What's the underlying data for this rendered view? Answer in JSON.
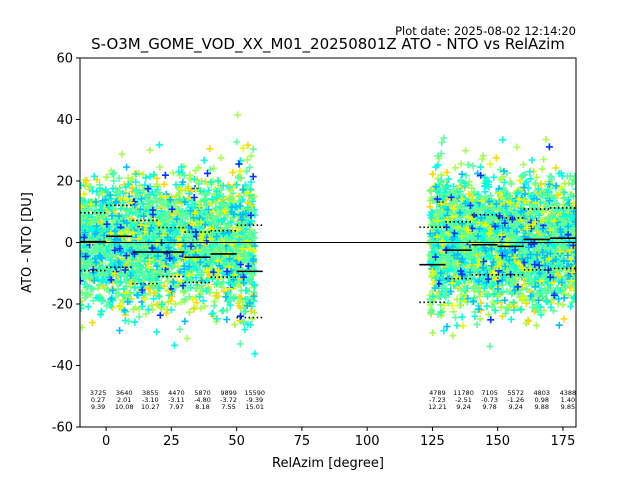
{
  "plot_date": "Plot date: 2025-08-02 12:14:20",
  "chart_data": {
    "type": "scatter",
    "title": "S-O3M_GOME_VOD_XX_M01_20250801Z ATO - NTO vs RelAzim",
    "xlabel": "RelAzim [degree]",
    "ylabel": "ATO - NTO [DU]",
    "xlim": [
      -10,
      180
    ],
    "ylim": [
      -60,
      60
    ],
    "xticks": [
      0,
      25,
      50,
      75,
      100,
      125,
      150,
      175
    ],
    "yticks": [
      -60,
      -40,
      -20,
      0,
      20,
      40,
      60
    ],
    "grid": false,
    "marker": "+",
    "colors": [
      "#a6ff4d",
      "#ffd700",
      "#00ffe0",
      "#5cffa0",
      "#00bfff",
      "#0033ff",
      "#e6ff00"
    ],
    "clusters": [
      {
        "x_range": [
          -10,
          57
        ],
        "y_center": 0,
        "spread": 18
      },
      {
        "x_range": [
          124,
          180
        ],
        "y_center": 0,
        "spread": 18
      }
    ],
    "zero_line": 0,
    "bins": [
      {
        "x0": -10,
        "x1": 0,
        "mean": 0.27,
        "std": 9.39,
        "count": "3725",
        "mean_label": "0.27",
        "std_label": "9.39"
      },
      {
        "x0": 0,
        "x1": 10,
        "mean": 2.01,
        "std": 10.08,
        "count": "3640",
        "mean_label": "2.01",
        "std_label": "10.08"
      },
      {
        "x0": 10,
        "x1": 20,
        "mean": -3.1,
        "std": 10.27,
        "count": "3855",
        "mean_label": "-3.10",
        "std_label": "10.27"
      },
      {
        "x0": 20,
        "x1": 30,
        "mean": -3.11,
        "std": 7.97,
        "count": "4470",
        "mean_label": "-3.11",
        "std_label": "7.97"
      },
      {
        "x0": 30,
        "x1": 40,
        "mean": -4.8,
        "std": 8.18,
        "count": "5870",
        "mean_label": "-4.80",
        "std_label": "8.18"
      },
      {
        "x0": 40,
        "x1": 50,
        "mean": -3.72,
        "std": 7.55,
        "count": "9899",
        "mean_label": "-3.72",
        "std_label": "7.55"
      },
      {
        "x0": 50,
        "x1": 60,
        "mean": -9.39,
        "std": 15.01,
        "count": "15590",
        "mean_label": "-9.39",
        "std_label": "15.01"
      },
      {
        "x0": 120,
        "x1": 130,
        "mean": -7.23,
        "std": 12.21,
        "count": "4789",
        "mean_label": "-7.23",
        "std_label": "12.21"
      },
      {
        "x0": 130,
        "x1": 140,
        "mean": -2.51,
        "std": 9.24,
        "count": "11780",
        "mean_label": "-2.51",
        "std_label": "9.24"
      },
      {
        "x0": 140,
        "x1": 150,
        "mean": -0.73,
        "std": 9.78,
        "count": "7105",
        "mean_label": "-0.73",
        "std_label": "9.78"
      },
      {
        "x0": 150,
        "x1": 160,
        "mean": -1.26,
        "std": 9.24,
        "count": "5572",
        "mean_label": "-1.26",
        "std_label": "9.24"
      },
      {
        "x0": 160,
        "x1": 170,
        "mean": 0.98,
        "std": 9.88,
        "count": "4803",
        "mean_label": "0.98",
        "std_label": "9.88"
      },
      {
        "x0": 170,
        "x1": 180,
        "mean": 1.4,
        "std": 9.85,
        "count": "4388",
        "mean_label": "1.40",
        "std_label": "9.85"
      }
    ]
  }
}
